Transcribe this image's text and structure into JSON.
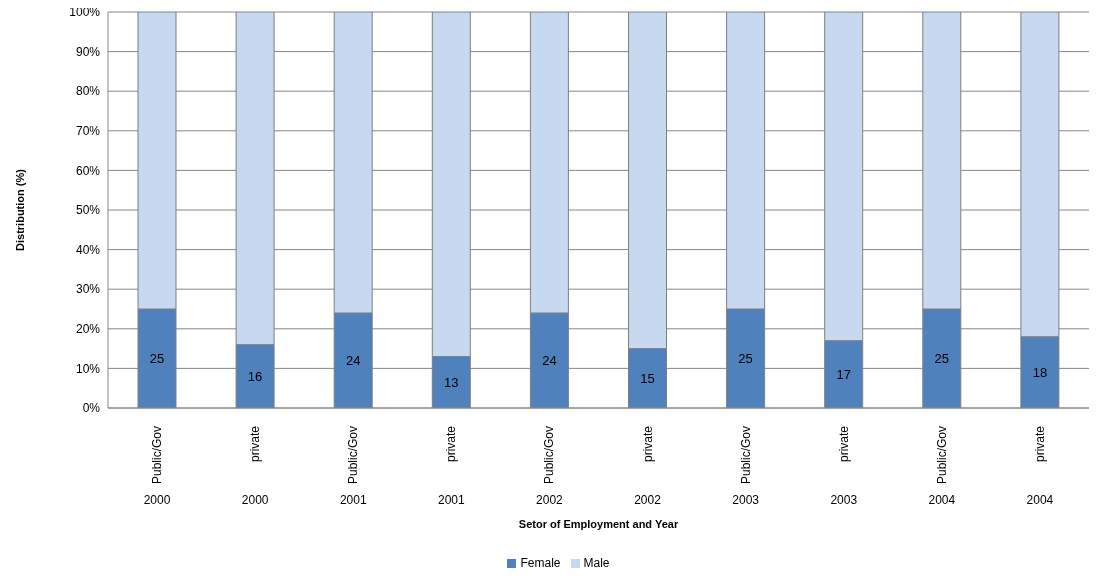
{
  "chart_data": {
    "type": "bar",
    "stacked": true,
    "ylabel": "Distribution (%)",
    "xlabel": "Setor of Employment and Year",
    "categories": [
      "Public/Gov\n2000",
      "private\n2000",
      "Public/Gov\n2001",
      "private\n2001",
      "Public/Gov\n2002",
      "private\n2002",
      "Public/Gov\n2003",
      "private\n2003",
      "Public/Gov\n2004",
      "private\n2004"
    ],
    "series": [
      {
        "name": "Female",
        "color": "#4f81bd",
        "values": [
          25,
          16,
          24,
          13,
          24,
          15,
          25,
          17,
          25,
          18
        ],
        "value_labels": [
          "25",
          "16",
          "24",
          "13",
          "24",
          "15",
          "25",
          "17",
          "25",
          "18"
        ]
      },
      {
        "name": "Male",
        "color": "#c6d9f1",
        "values": [
          75,
          84,
          76,
          87,
          76,
          85,
          75,
          83,
          75,
          82
        ]
      }
    ],
    "ylim": [
      0,
      100
    ],
    "yticks": [
      {
        "value": 0,
        "label": "0%"
      },
      {
        "value": 10,
        "label": "10%"
      },
      {
        "value": 20,
        "label": "20%"
      },
      {
        "value": 30,
        "label": "30%"
      },
      {
        "value": 40,
        "label": "40%"
      },
      {
        "value": 50,
        "label": "50%"
      },
      {
        "value": 60,
        "label": "60%"
      },
      {
        "value": 70,
        "label": "70%"
      },
      {
        "value": 80,
        "label": "80%"
      },
      {
        "value": 90,
        "label": "90%"
      },
      {
        "value": 100,
        "label": "100%"
      }
    ],
    "grid": "y",
    "legend": "bottom"
  }
}
